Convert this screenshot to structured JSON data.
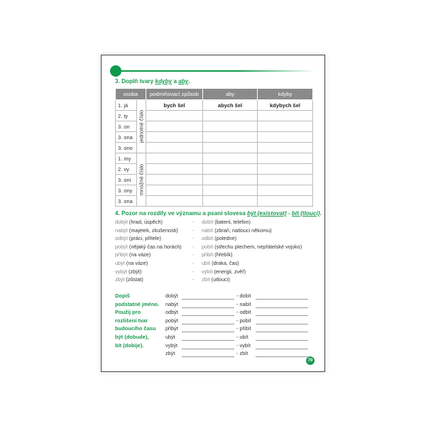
{
  "exercise3": {
    "title_prefix": "3. Doplň tvary ",
    "title_w1": "kdyby",
    "title_mid": " a ",
    "title_w2": "aby",
    "title_end": ".",
    "headers": [
      "osoba",
      "podmiňovací způsob",
      "aby",
      "kdyby"
    ],
    "group_singular": "jednotné číslo",
    "group_plural": "množné číslo",
    "persons": [
      "1.  já",
      "2.  ty",
      "3.  on",
      "3. ona",
      "3. ono",
      "1.  my",
      "2.  vy",
      "3.  oni",
      "3. ony",
      "3. ona"
    ],
    "example": [
      "bych šel",
      "abych šel",
      "kdybych šel"
    ]
  },
  "exercise4": {
    "title_prefix": "4. Pozor na rozdíly ve významu a psaní slovesa ",
    "title_w1": "být (existovat)",
    "title_mid": " - ",
    "title_w2": "bít (tlouci)",
    "title_end": ".",
    "pairs": [
      {
        "left_word": "dobýt",
        "left_note": " (hrad, úspěch)",
        "right_word": "dobít",
        "right_note": " (baterii, telefon)"
      },
      {
        "left_word": "nabýt",
        "left_note": " (majetek, zkušenosti)",
        "right_word": "nabít",
        "right_note": " (zbraň, natlouci někomu)"
      },
      {
        "left_word": "odbýt",
        "left_note": " (práci, přítele)",
        "right_word": "odbít",
        "right_note": " (poledne)"
      },
      {
        "left_word": "pobýt",
        "left_note": " (nějaký čas na horách)",
        "right_word": "pobít",
        "right_note": " (střechu plechem, nepřátelské vojsko)"
      },
      {
        "left_word": "přibýt",
        "left_note": " (na váze)",
        "right_word": "přibít",
        "right_note": " (hřebík)"
      },
      {
        "left_word": "ubýt",
        "left_note": " (na váze)",
        "right_word": "ubít",
        "right_note": " (draka, čas)"
      },
      {
        "left_word": "vybýt",
        "left_note": " (zbýt)",
        "right_word": "vybít",
        "right_note": " (energii, zvěř)"
      },
      {
        "left_word": "zbýt",
        "left_note": " (zůstat)",
        "right_word": "zbít",
        "right_note": " (utlouci)"
      }
    ],
    "dash": "-"
  },
  "exercise5": {
    "instructions": [
      "Dopiš",
      "podstatné jméno.",
      "Použij pro",
      "rozlišení tvar",
      "budoucího času",
      "být (dobude),",
      "bít (dobije)."
    ],
    "left_words": [
      "dobýt",
      "nabýt",
      "odbýt",
      "pobýt",
      "přibýt",
      "ubýt",
      "vybýt",
      "zbýt"
    ],
    "right_words": [
      "- dobít",
      "- nabít",
      "- odbít",
      "- pobít",
      "- přibít",
      "- ubít",
      "- vybít",
      "- zbít"
    ]
  },
  "page_number": "70",
  "colors": {
    "accent": "#1a9a52",
    "header_bg": "#8a8a8a"
  }
}
